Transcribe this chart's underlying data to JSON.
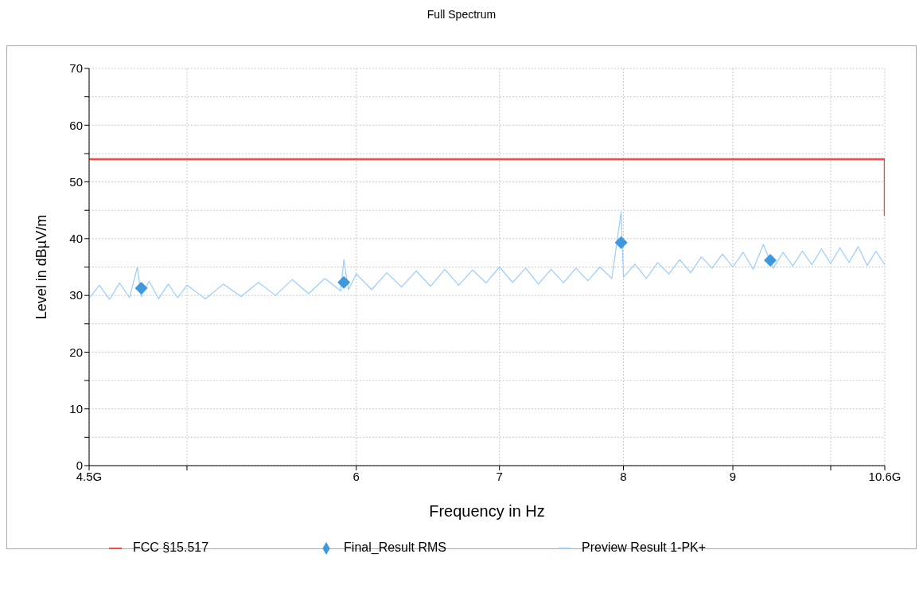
{
  "chart_data": {
    "type": "line",
    "title": "Full Spectrum",
    "xlabel": "Frequency in Hz",
    "ylabel": "Level in dBµV/m",
    "log": "x",
    "grid": true,
    "legend": "bottom",
    "xlim": [
      4.5,
      10.6
    ],
    "xticks": [
      {
        "value": 4.5,
        "label": "4.5G"
      },
      {
        "value": 5,
        "label": null
      },
      6,
      7,
      8,
      9,
      {
        "value": 10,
        "label": null
      },
      {
        "value": 10.6,
        "label": "10.6G"
      }
    ],
    "ylim": [
      0,
      70
    ],
    "yticks": [
      0,
      {
        "value": 5,
        "label": null
      },
      10,
      {
        "value": 15,
        "label": null
      },
      20,
      {
        "value": 25,
        "label": null
      },
      30,
      {
        "value": 35,
        "label": null
      },
      40,
      {
        "value": 45,
        "label": null
      },
      50,
      {
        "value": 55,
        "label": null
      },
      60,
      {
        "value": 65,
        "label": null
      },
      70
    ],
    "series": [
      {
        "name": "Preview Result 1-PK+",
        "color": "#99ccff",
        "x": [
          4.5,
          4.55,
          4.6,
          4.65,
          4.7,
          4.74,
          4.76,
          4.8,
          4.85,
          4.9,
          4.95,
          5.0,
          5.1,
          5.2,
          5.3,
          5.4,
          5.5,
          5.6,
          5.7,
          5.8,
          5.9,
          5.92,
          5.95,
          6.0,
          6.1,
          6.2,
          6.3,
          6.4,
          6.5,
          6.6,
          6.7,
          6.8,
          6.9,
          7.0,
          7.1,
          7.2,
          7.3,
          7.4,
          7.5,
          7.6,
          7.7,
          7.8,
          7.9,
          7.98,
          8.0,
          8.1,
          8.2,
          8.3,
          8.4,
          8.5,
          8.6,
          8.7,
          8.8,
          8.9,
          9.0,
          9.1,
          9.2,
          9.3,
          9.4,
          9.5,
          9.6,
          9.7,
          9.8,
          9.9,
          10.0,
          10.1,
          10.2,
          10.3,
          10.4,
          10.5,
          10.6
        ],
        "values": [
          29.5,
          31.8,
          29.3,
          32.2,
          29.6,
          35.0,
          29.8,
          32.5,
          29.4,
          32.0,
          29.6,
          31.8,
          29.4,
          32.0,
          29.8,
          32.3,
          30.0,
          32.8,
          30.3,
          33.0,
          30.8,
          36.3,
          31.0,
          33.8,
          31.0,
          34.0,
          31.5,
          34.3,
          31.6,
          34.6,
          31.8,
          34.5,
          32.2,
          35.0,
          32.3,
          34.8,
          32.0,
          34.6,
          32.2,
          34.8,
          32.6,
          35.0,
          33.0,
          44.7,
          33.2,
          35.5,
          33.0,
          35.8,
          33.8,
          36.3,
          34.0,
          36.8,
          34.8,
          37.3,
          35.0,
          37.6,
          34.6,
          39.0,
          34.8,
          37.6,
          35.2,
          37.8,
          35.4,
          38.2,
          35.6,
          38.4,
          35.8,
          38.6,
          35.3,
          37.8,
          35.4
        ]
      },
      {
        "name": "FCC §15.517",
        "color": "#ff4444",
        "x": [
          4.5,
          10.6,
          10.6
        ],
        "values": [
          54,
          54,
          44
        ]
      },
      {
        "name": "Final_Result RMS",
        "type": "scatter",
        "color": "#3d98dc",
        "marker": "diamond",
        "x": [
          4.76,
          5.92,
          7.98,
          9.37
        ],
        "values": [
          31.3,
          32.3,
          39.3,
          36.2
        ]
      }
    ]
  }
}
